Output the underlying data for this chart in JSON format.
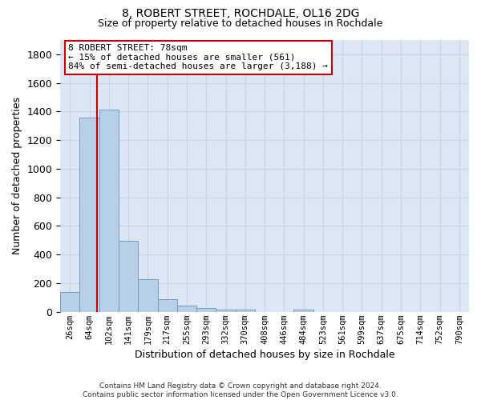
{
  "title1": "8, ROBERT STREET, ROCHDALE, OL16 2DG",
  "title2": "Size of property relative to detached houses in Rochdale",
  "xlabel": "Distribution of detached houses by size in Rochdale",
  "ylabel": "Number of detached properties",
  "footnote": "Contains HM Land Registry data © Crown copyright and database right 2024.\nContains public sector information licensed under the Open Government Licence v3.0.",
  "bar_labels": [
    "26sqm",
    "64sqm",
    "102sqm",
    "141sqm",
    "179sqm",
    "217sqm",
    "255sqm",
    "293sqm",
    "332sqm",
    "370sqm",
    "408sqm",
    "446sqm",
    "484sqm",
    "523sqm",
    "561sqm",
    "599sqm",
    "637sqm",
    "675sqm",
    "714sqm",
    "752sqm",
    "790sqm"
  ],
  "bar_values": [
    140,
    1355,
    1415,
    495,
    230,
    88,
    43,
    25,
    18,
    15,
    0,
    0,
    18,
    0,
    0,
    0,
    0,
    0,
    0,
    0,
    0
  ],
  "bar_color": "#b8cfe8",
  "bar_edge_color": "#7399c6",
  "property_size_label": "8 ROBERT STREET: 78sqm",
  "pct_smaller": 15,
  "n_smaller": 561,
  "pct_semi_larger": 84,
  "n_semi_larger": 3188,
  "red_line_color": "#cc0000",
  "annotation_box_color": "#cc0000",
  "ylim": [
    0,
    1900
  ],
  "yticks": [
    0,
    200,
    400,
    600,
    800,
    1000,
    1200,
    1400,
    1600,
    1800
  ],
  "grid_color": "#c8d4e8",
  "background_color": "#dce6f4",
  "figsize": [
    6.0,
    5.0
  ],
  "dpi": 100
}
